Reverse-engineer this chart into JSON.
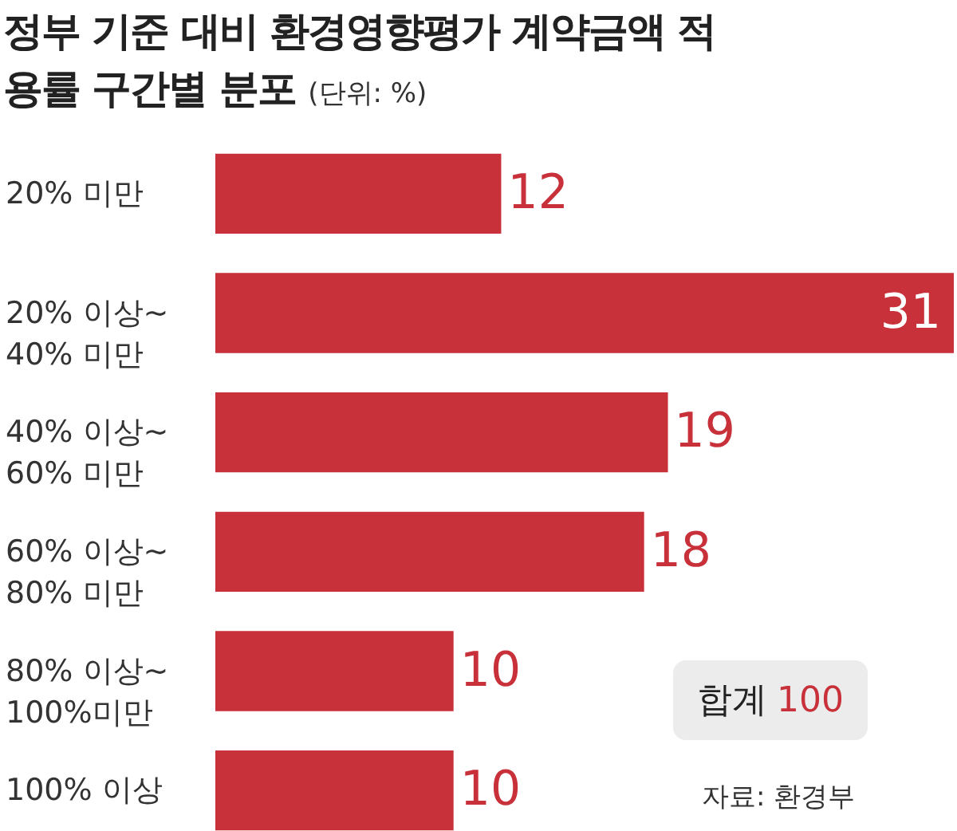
{
  "chart_data": {
    "type": "bar",
    "orientation": "horizontal",
    "data_labels": true,
    "title": "정부 기준 대비 환경영향평가 계약금액 적용률 구간별 분포",
    "subtitle": "(단위: %)",
    "categories": [
      "20% 미만",
      "20% 이상~\n40% 미만",
      "40% 이상~\n60% 미만",
      "60% 이상~\n80% 미만",
      "80% 이상~\n100%미만",
      "100% 이상"
    ],
    "values": [
      12,
      31,
      19,
      18,
      10,
      10
    ],
    "color": "#c8313a",
    "annotations": [
      "합계 100",
      "자료: 환경부"
    ]
  }
}
